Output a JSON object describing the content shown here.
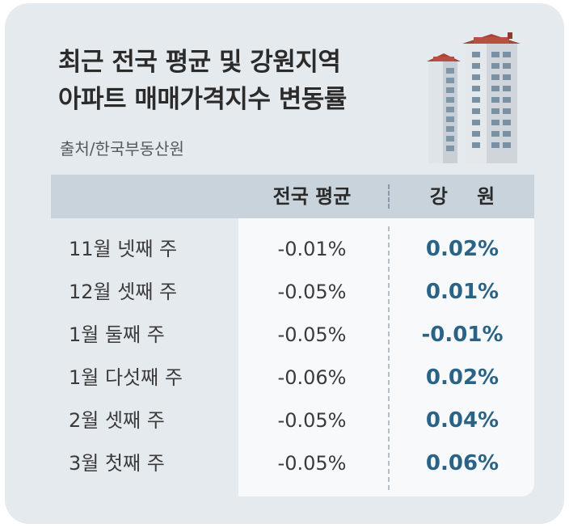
{
  "header": {
    "title_line1": "최근 전국 평균 및 강원지역",
    "title_line2": "아파트 매매가격지수 변동률",
    "source": "출처/한국부동산원"
  },
  "illustration": {
    "icon": "apartment-buildings-icon"
  },
  "colors": {
    "card_bg": "#e5eaee",
    "header_bg": "#c8d3dc",
    "panel_bg": "#f7f9fb",
    "accent": "#2b6387"
  },
  "chart_data": {
    "type": "table",
    "columns": [
      "",
      "전국 평균",
      "강 원"
    ],
    "rows": [
      {
        "label": "11월 넷째 주",
        "national": "-0.01%",
        "gangwon": "0.02%"
      },
      {
        "label": "12월 셋째 주",
        "national": "-0.05%",
        "gangwon": "0.01%"
      },
      {
        "label": "1월 둘째 주",
        "national": "-0.05%",
        "gangwon": "-0.01%"
      },
      {
        "label": "1월 다섯째 주",
        "national": "-0.06%",
        "gangwon": "0.02%"
      },
      {
        "label": "2월 셋째 주",
        "national": "-0.05%",
        "gangwon": "0.04%"
      },
      {
        "label": "3월 첫째 주",
        "national": "-0.05%",
        "gangwon": "0.06%"
      }
    ]
  }
}
